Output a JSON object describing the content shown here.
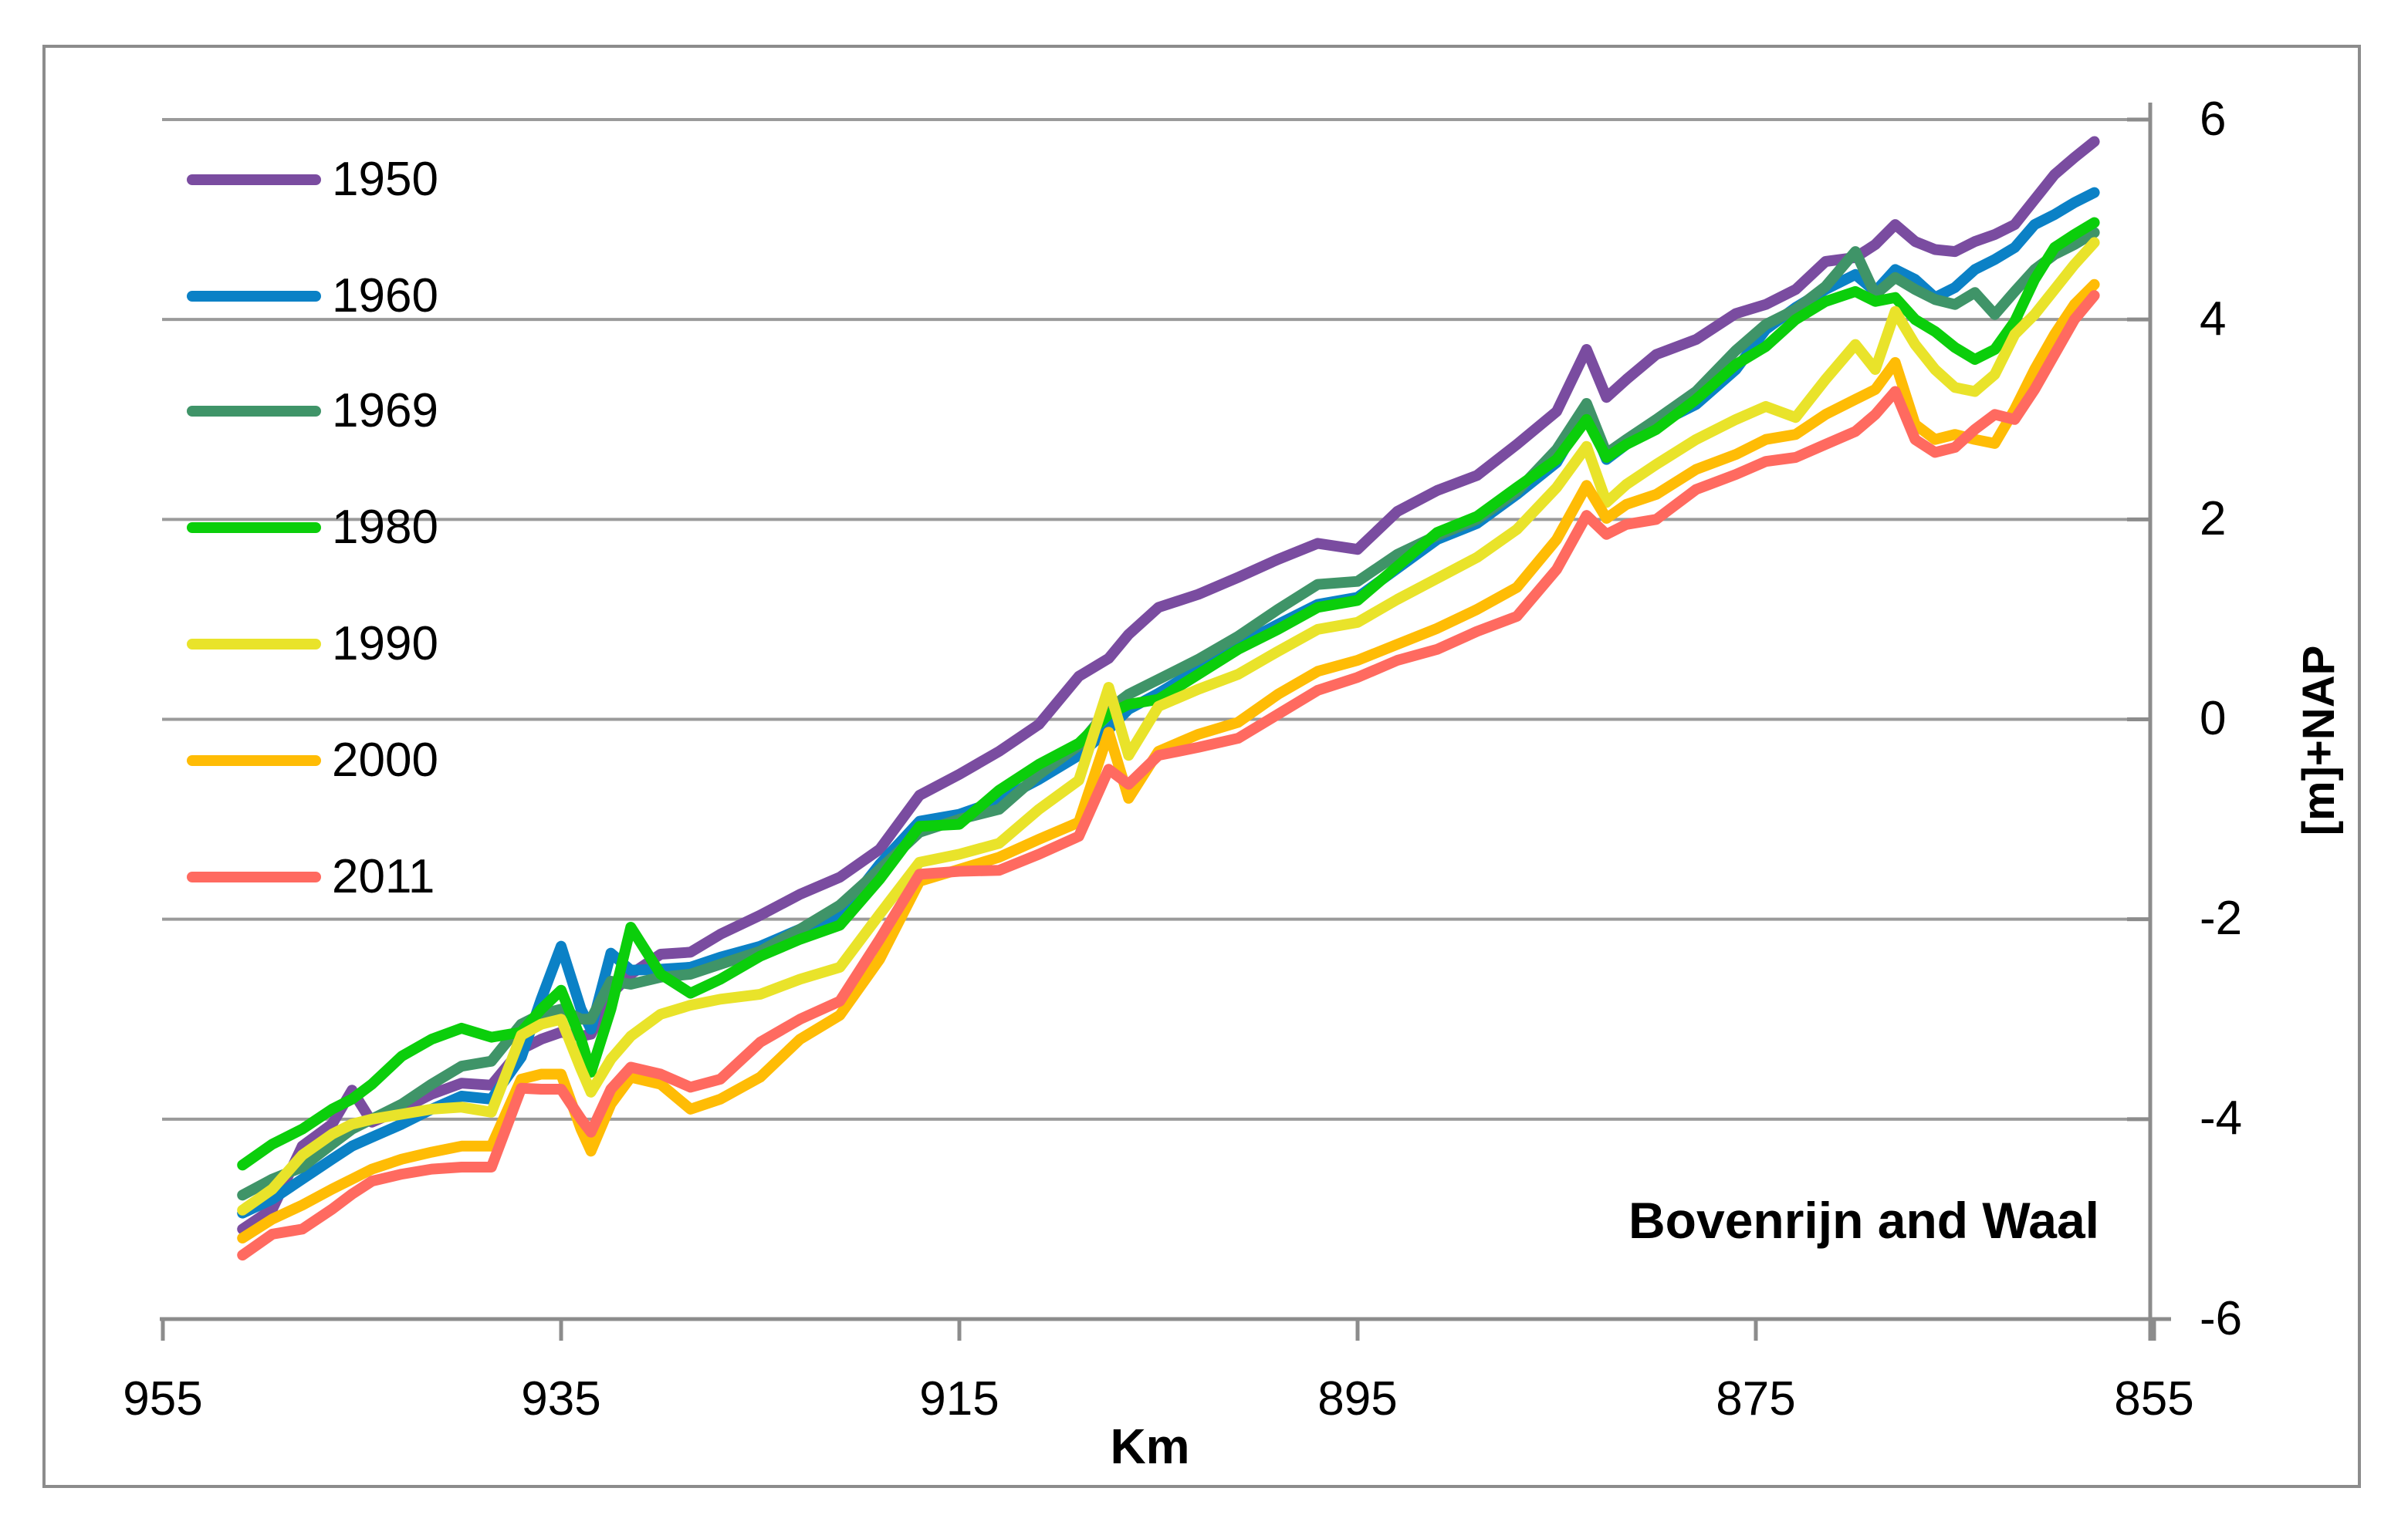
{
  "title": "Bovenrijn and Waal",
  "axes": {
    "x_label": "Km",
    "y_label": "[m]+NAP"
  },
  "chart_data": {
    "type": "line",
    "title": "Bovenrijn and Waal",
    "xlabel": "Km",
    "ylabel": "[m]+NAP",
    "xlim": [
      955,
      855
    ],
    "ylim": [
      -6,
      6
    ],
    "x_axis_reversed": true,
    "grid": "horizontal",
    "legend_position": "upper-left",
    "x_tick_labels": [
      "955",
      "935",
      "915",
      "895",
      "875",
      "855"
    ],
    "x_tick_values": [
      955,
      935,
      915,
      895,
      875,
      855
    ],
    "y_tick_labels": [
      "6",
      "4",
      "2",
      "0",
      "-2",
      "-4",
      "-6"
    ],
    "y_tick_values": [
      6,
      4,
      2,
      0,
      -2,
      -4,
      -6
    ],
    "x": [
      951,
      949.5,
      948,
      946.5,
      945.5,
      944.5,
      943,
      941.5,
      940,
      938.5,
      937,
      936,
      935,
      934,
      933.5,
      932.5,
      931.5,
      930,
      928.5,
      927,
      925,
      923,
      921,
      919,
      917,
      915,
      913,
      911,
      909,
      907.5,
      906.5,
      905,
      903,
      901,
      899,
      897,
      895,
      893,
      891,
      889,
      887,
      885,
      883.5,
      882.5,
      881.5,
      880,
      878,
      876,
      874.5,
      873,
      871.5,
      870,
      869,
      868,
      867,
      866,
      865,
      864,
      863,
      862,
      861,
      860,
      859,
      858
    ],
    "series": [
      {
        "name": "1950",
        "color": "#7a4ca0",
        "values": [
          -5.1,
          -4.9,
          -4.27,
          -4.05,
          -3.71,
          -4.03,
          -3.9,
          -3.75,
          -3.64,
          -3.66,
          -3.3,
          -3.2,
          -3.13,
          -3.17,
          -3.15,
          -2.75,
          -2.55,
          -2.35,
          -2.33,
          -2.15,
          -1.96,
          -1.75,
          -1.58,
          -1.3,
          -0.76,
          -0.55,
          -0.32,
          -0.05,
          0.43,
          0.61,
          0.85,
          1.12,
          1.25,
          1.42,
          1.6,
          1.76,
          1.7,
          2.08,
          2.29,
          2.44,
          2.75,
          3.08,
          3.7,
          3.22,
          3.4,
          3.65,
          3.8,
          4.06,
          4.15,
          4.3,
          4.58,
          4.62,
          4.75,
          4.95,
          4.78,
          4.7,
          4.68,
          4.78,
          4.85,
          4.95,
          5.2,
          5.45,
          5.62,
          5.78
        ]
      },
      {
        "name": "1960",
        "color": "#0b81c6",
        "values": [
          -4.94,
          -4.8,
          -4.6,
          -4.4,
          -4.27,
          -4.18,
          -4.05,
          -3.9,
          -3.77,
          -3.8,
          -3.38,
          -2.8,
          -2.27,
          -2.9,
          -3.1,
          -2.34,
          -2.51,
          -2.5,
          -2.48,
          -2.38,
          -2.27,
          -2.1,
          -1.96,
          -1.45,
          -1.02,
          -0.95,
          -0.81,
          -0.6,
          -0.36,
          -0.1,
          0.1,
          0.26,
          0.5,
          0.74,
          0.95,
          1.15,
          1.22,
          1.51,
          1.8,
          1.96,
          2.25,
          2.57,
          3.08,
          2.6,
          2.75,
          2.95,
          3.15,
          3.5,
          3.9,
          4.12,
          4.3,
          4.45,
          4.28,
          4.5,
          4.4,
          4.22,
          4.32,
          4.5,
          4.6,
          4.72,
          4.95,
          5.05,
          5.17,
          5.27
        ]
      },
      {
        "name": "1969",
        "color": "#3f9468",
        "values": [
          -4.76,
          -4.6,
          -4.48,
          -4.25,
          -4.1,
          -4.0,
          -3.85,
          -3.65,
          -3.47,
          -3.42,
          -3.05,
          -2.95,
          -2.9,
          -3.0,
          -3.0,
          -2.62,
          -2.65,
          -2.58,
          -2.55,
          -2.45,
          -2.32,
          -2.1,
          -1.86,
          -1.5,
          -1.13,
          -1.0,
          -0.9,
          -0.55,
          -0.26,
          0.1,
          0.25,
          0.4,
          0.6,
          0.83,
          1.1,
          1.35,
          1.38,
          1.65,
          1.84,
          2.0,
          2.28,
          2.7,
          3.16,
          2.66,
          2.8,
          3.0,
          3.28,
          3.69,
          3.95,
          4.1,
          4.33,
          4.68,
          4.25,
          4.42,
          4.3,
          4.2,
          4.15,
          4.27,
          4.05,
          4.28,
          4.5,
          4.65,
          4.75,
          4.87
        ]
      },
      {
        "name": "1980",
        "color": "#0bce0b",
        "values": [
          -4.46,
          -4.25,
          -4.1,
          -3.9,
          -3.8,
          -3.65,
          -3.37,
          -3.2,
          -3.09,
          -3.18,
          -3.13,
          -2.9,
          -2.71,
          -3.2,
          -3.53,
          -2.9,
          -2.08,
          -2.55,
          -2.74,
          -2.6,
          -2.37,
          -2.2,
          -2.06,
          -1.6,
          -1.07,
          -1.05,
          -0.71,
          -0.45,
          -0.24,
          0.05,
          0.15,
          0.2,
          0.45,
          0.7,
          0.9,
          1.12,
          1.19,
          1.53,
          1.87,
          2.03,
          2.32,
          2.6,
          3.0,
          2.62,
          2.75,
          2.9,
          3.2,
          3.55,
          3.73,
          4.0,
          4.18,
          4.28,
          4.18,
          4.22,
          4.0,
          3.88,
          3.72,
          3.6,
          3.7,
          3.98,
          4.4,
          4.72,
          4.85,
          4.97
        ]
      },
      {
        "name": "1990",
        "color": "#e9e32a",
        "values": [
          -4.91,
          -4.7,
          -4.36,
          -4.15,
          -4.05,
          -4.0,
          -3.95,
          -3.9,
          -3.88,
          -3.93,
          -3.16,
          -3.05,
          -3.0,
          -3.5,
          -3.73,
          -3.4,
          -3.17,
          -2.95,
          -2.86,
          -2.8,
          -2.75,
          -2.6,
          -2.48,
          -1.95,
          -1.43,
          -1.35,
          -1.24,
          -0.9,
          -0.61,
          0.32,
          -0.36,
          0.13,
          0.3,
          0.45,
          0.68,
          0.9,
          0.97,
          1.2,
          1.41,
          1.62,
          1.9,
          2.32,
          2.73,
          2.17,
          2.35,
          2.55,
          2.8,
          3.0,
          3.13,
          3.02,
          3.4,
          3.75,
          3.5,
          4.08,
          3.75,
          3.5,
          3.32,
          3.28,
          3.45,
          3.85,
          4.05,
          4.3,
          4.55,
          4.77
        ]
      },
      {
        "name": "2000",
        "color": "#ffbc05",
        "values": [
          -5.19,
          -5.0,
          -4.86,
          -4.7,
          -4.6,
          -4.5,
          -4.4,
          -4.33,
          -4.27,
          -4.27,
          -3.6,
          -3.55,
          -3.55,
          -4.1,
          -4.32,
          -3.85,
          -3.58,
          -3.65,
          -3.9,
          -3.8,
          -3.58,
          -3.2,
          -2.96,
          -2.4,
          -1.62,
          -1.5,
          -1.38,
          -1.2,
          -1.03,
          -0.13,
          -0.79,
          -0.32,
          -0.15,
          -0.03,
          0.25,
          0.48,
          0.59,
          0.75,
          0.91,
          1.1,
          1.32,
          1.8,
          2.34,
          2.01,
          2.15,
          2.25,
          2.5,
          2.65,
          2.8,
          2.85,
          3.05,
          3.2,
          3.3,
          3.57,
          2.95,
          2.8,
          2.85,
          2.8,
          2.76,
          3.1,
          3.5,
          3.85,
          4.15,
          4.35
        ]
      },
      {
        "name": "2011",
        "color": "#ff6a60",
        "values": [
          -5.36,
          -5.15,
          -5.1,
          -4.9,
          -4.75,
          -4.62,
          -4.55,
          -4.5,
          -4.48,
          -4.48,
          -3.69,
          -3.7,
          -3.7,
          -4.0,
          -4.13,
          -3.7,
          -3.48,
          -3.55,
          -3.68,
          -3.6,
          -3.23,
          -3.0,
          -2.82,
          -2.2,
          -1.55,
          -1.52,
          -1.51,
          -1.35,
          -1.17,
          -0.5,
          -0.65,
          -0.36,
          -0.28,
          -0.19,
          0.05,
          0.29,
          0.42,
          0.59,
          0.7,
          0.88,
          1.03,
          1.5,
          2.04,
          1.85,
          1.95,
          2.0,
          2.3,
          2.45,
          2.58,
          2.62,
          2.75,
          2.88,
          3.05,
          3.28,
          2.8,
          2.67,
          2.72,
          2.9,
          3.05,
          3.0,
          3.3,
          3.65,
          4.0,
          4.24
        ]
      }
    ]
  }
}
